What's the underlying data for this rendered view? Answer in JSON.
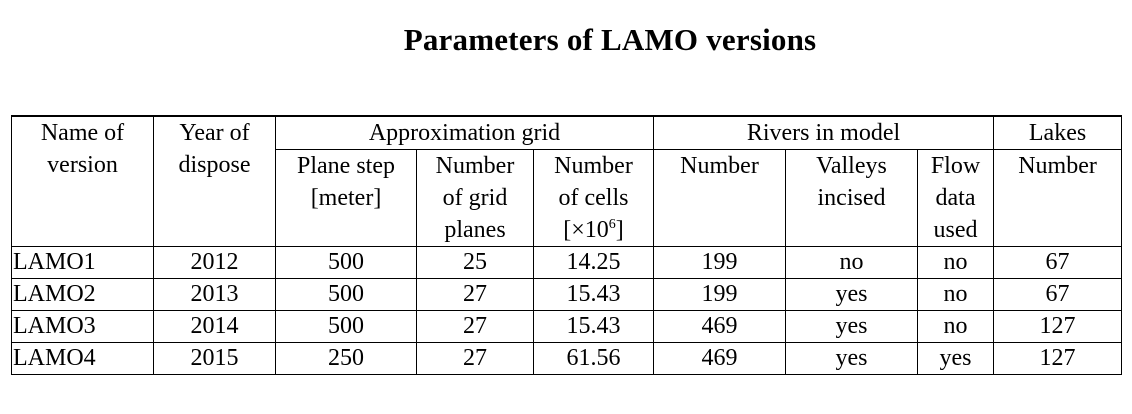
{
  "title": "Parameters of LAMO versions",
  "headers": {
    "name_line1": "Name of",
    "name_line2": "version",
    "year_line1": "Year of",
    "year_line2": "dispose",
    "approx_grid": "Approximation grid",
    "rivers": "Rivers in model",
    "lakes": "Lakes",
    "plane_step_line1": "Plane step",
    "plane_step_line2": "[meter]",
    "grid_planes_line1": "Number",
    "grid_planes_line2": "of grid",
    "grid_planes_line3": "planes",
    "cells_line1": "Number",
    "cells_line2": "of cells",
    "cells_unit_open": "[×10",
    "cells_unit_exp": "6",
    "cells_unit_close": "]",
    "rivers_number": "Number",
    "valleys_line1": "Valleys",
    "valleys_line2": "incised",
    "flow_line1": "Flow",
    "flow_line2": "data",
    "flow_line3": "used",
    "lakes_number": "Number"
  },
  "rows": [
    {
      "name": "LAMO1",
      "year": "2012",
      "plane_step": "500",
      "grid_planes": "25",
      "cells": "14.25",
      "rivers_number": "199",
      "valleys": "no",
      "flow": "no",
      "lakes": "67"
    },
    {
      "name": "LAMO2",
      "year": "2013",
      "plane_step": "500",
      "grid_planes": "27",
      "cells": "15.43",
      "rivers_number": "199",
      "valleys": "yes",
      "flow": "no",
      "lakes": "67"
    },
    {
      "name": "LAMO3",
      "year": "2014",
      "plane_step": "500",
      "grid_planes": "27",
      "cells": "15.43",
      "rivers_number": "469",
      "valleys": "yes",
      "flow": "no",
      "lakes": "127"
    },
    {
      "name": "LAMO4",
      "year": "2015",
      "plane_step": "250",
      "grid_planes": "27",
      "cells": "61.56",
      "rivers_number": "469",
      "valleys": "yes",
      "flow": "yes",
      "lakes": "127"
    }
  ]
}
